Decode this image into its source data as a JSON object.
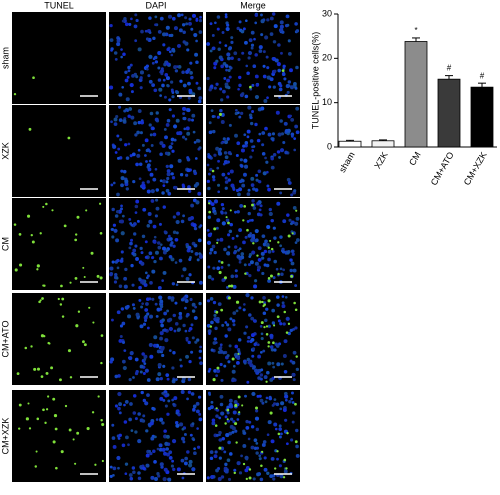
{
  "panels": {
    "columns": [
      "TUNEL",
      "DAPI",
      "Merge"
    ],
    "rows": [
      "sham",
      "XZK",
      "CM",
      "CM+ATO",
      "CM+XZK"
    ]
  },
  "chart_data": {
    "type": "bar",
    "y_label": "TUNEL-positive cells(%)",
    "categories": [
      "sham",
      "XZK",
      "CM",
      "CM+ATO",
      "CM+XZK"
    ],
    "values": [
      1.3,
      1.4,
      23.8,
      15.3,
      13.5
    ],
    "errors": [
      0.2,
      0.2,
      0.8,
      0.8,
      0.9
    ],
    "colors": [
      "#ffffff",
      "#f2f2f2",
      "#8c8c8c",
      "#3a3a3a",
      "#000000"
    ],
    "annotations": [
      {
        "text": "*",
        "category": "CM"
      },
      {
        "text": "#",
        "category": "CM+ATO"
      },
      {
        "text": "#",
        "category": "CM+XZK"
      }
    ],
    "ylim": [
      0,
      30
    ],
    "yticks": [
      0,
      10,
      20,
      30
    ]
  }
}
